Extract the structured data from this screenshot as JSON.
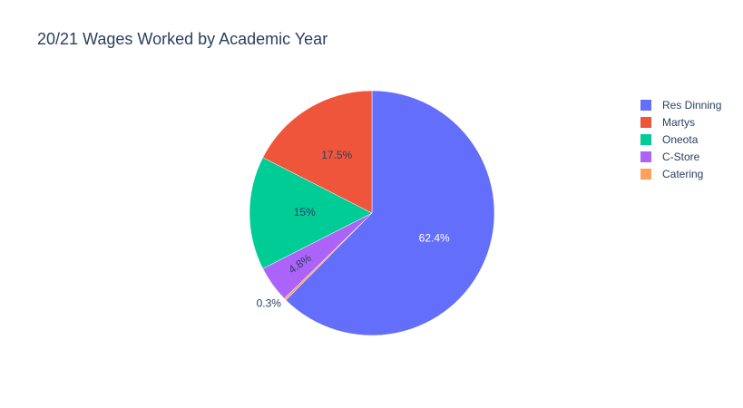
{
  "chart_data": {
    "type": "pie",
    "title": "20/21 Wages Worked by Academic Year",
    "slices": [
      {
        "label": "Res Dinning",
        "percent": 62.4,
        "percent_label": "62.4%",
        "color": "#636efa",
        "label_color": "#ffffff"
      },
      {
        "label": "Catering",
        "percent": 0.3,
        "percent_label": "0.3%",
        "color": "#ffa15a",
        "label_color": "#2a3f5f"
      },
      {
        "label": "C-Store",
        "percent": 4.8,
        "percent_label": "4.8%",
        "color": "#ab63fa",
        "label_color": "#2a3f5f"
      },
      {
        "label": "Oneota",
        "percent": 15,
        "percent_label": "15%",
        "color": "#00cc96",
        "label_color": "#2a3f5f"
      },
      {
        "label": "Martys",
        "percent": 17.5,
        "percent_label": "17.5%",
        "color": "#ef553b",
        "label_color": "#2a3f5f"
      }
    ],
    "legend": {
      "placement": "top-right",
      "order": [
        "Res Dinning",
        "Martys",
        "Oneota",
        "C-Store",
        "Catering"
      ]
    }
  }
}
